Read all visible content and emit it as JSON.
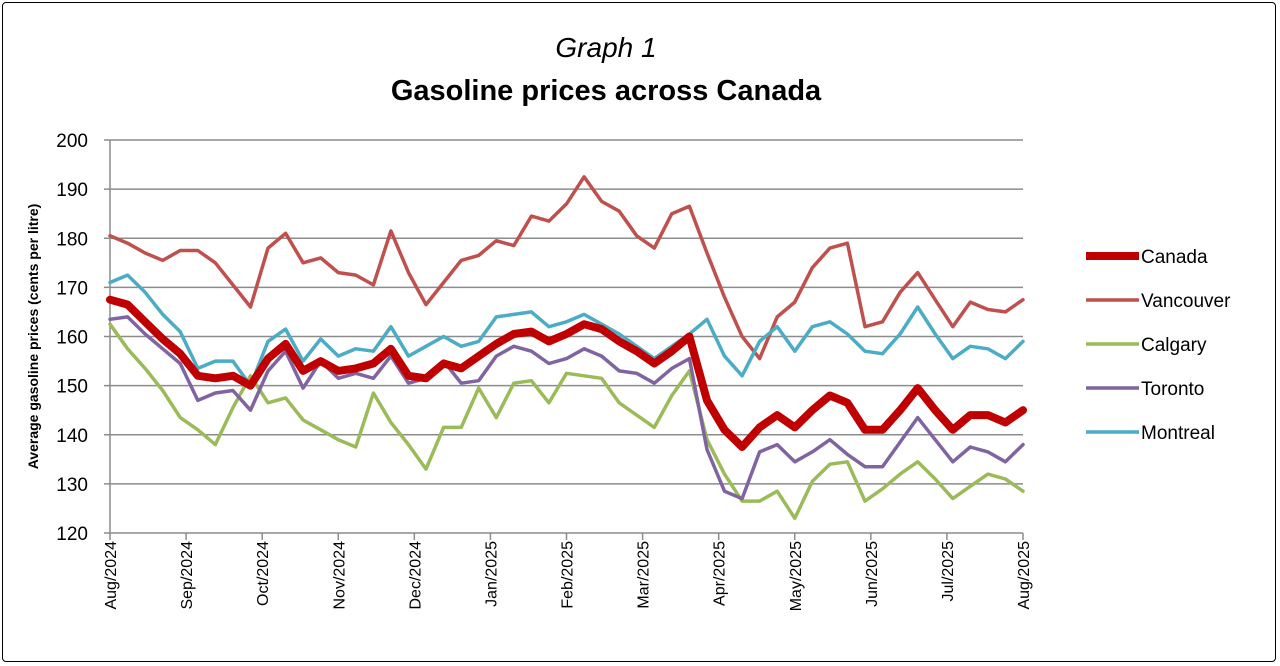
{
  "chart_data": {
    "type": "line",
    "subtitle": "Graph 1",
    "title": "Gasoline prices across Canada",
    "xlabel": "",
    "ylabel": "Average gasoline prices (cents per litre)",
    "ylim": [
      120,
      200
    ],
    "yticks": [
      120,
      130,
      140,
      150,
      160,
      170,
      180,
      190,
      200
    ],
    "x_tick_labels": [
      "Aug/2024",
      "Sep/2024",
      "Oct/2024",
      "Nov/2024",
      "Dec/2024",
      "Jan/2025",
      "Feb/2025",
      "Mar/2025",
      "Apr/2025",
      "May/2025",
      "Jun/2025",
      "Jul/2025",
      "Aug/2025"
    ],
    "grid": true,
    "legend_position": "right",
    "series": [
      {
        "name": "Canada",
        "color": "#C00000",
        "values": [
          167.5,
          166.5,
          163,
          159.5,
          156.5,
          152,
          151.5,
          152,
          150,
          155.5,
          158.5,
          153,
          155,
          153,
          153.5,
          154.5,
          157.5,
          152,
          151.5,
          154.5,
          153.5,
          156,
          158.5,
          160.5,
          161,
          159,
          160.5,
          162.5,
          161.5,
          159,
          157,
          154.5,
          157,
          160,
          147,
          141,
          137.5,
          141.5,
          144,
          141.5,
          145,
          148,
          146.5,
          141,
          141,
          145,
          149.5,
          145,
          141,
          144,
          144,
          142.5,
          145
        ]
      },
      {
        "name": "Vancouver",
        "color": "#C0504D",
        "values": [
          180.5,
          179,
          177,
          175.5,
          177.5,
          177.5,
          175,
          170.5,
          166,
          178,
          181,
          175,
          176,
          173,
          172.5,
          170.5,
          181.5,
          173,
          166.5,
          171,
          175.5,
          176.5,
          179.5,
          178.5,
          184.5,
          183.5,
          187,
          192.5,
          187.5,
          185.5,
          180.5,
          178,
          185,
          186.5,
          177,
          168,
          160,
          155.5,
          164,
          167,
          174,
          178,
          179,
          162,
          163,
          169,
          173,
          167.5,
          162,
          167,
          165.5,
          165,
          167.5
        ]
      },
      {
        "name": "Calgary",
        "color": "#9BBB59",
        "values": [
          162.5,
          157.5,
          153.5,
          149,
          143.5,
          141,
          138,
          145.5,
          152,
          146.5,
          147.5,
          143,
          141,
          139,
          137.5,
          148.5,
          142.5,
          138,
          133,
          141.5,
          141.5,
          149.5,
          143.5,
          150.5,
          151,
          146.5,
          152.5,
          152,
          151.5,
          146.5,
          144,
          141.5,
          148,
          153,
          139,
          132,
          126.5,
          126.5,
          128.5,
          123,
          130.5,
          134,
          134.5,
          126.5,
          129,
          132,
          134.5,
          131,
          127,
          129.5,
          132,
          131,
          128.5
        ]
      },
      {
        "name": "Toronto",
        "color": "#8064A2",
        "values": [
          163.5,
          164,
          160.5,
          157.5,
          154.5,
          147,
          148.5,
          149,
          145,
          153,
          157,
          149.5,
          155,
          151.5,
          152.5,
          151.5,
          156,
          150.5,
          151.5,
          155,
          150.5,
          151,
          156,
          158,
          157,
          154.5,
          155.5,
          157.5,
          156,
          153,
          152.5,
          150.5,
          153.5,
          155.5,
          137,
          128.5,
          127,
          136.5,
          138,
          134.5,
          136.5,
          139,
          136,
          133.5,
          133.5,
          138.5,
          143.5,
          139,
          134.5,
          137.5,
          136.5,
          134.5,
          138
        ]
      },
      {
        "name": "Montreal",
        "color": "#4BACC6",
        "values": [
          171,
          172.5,
          169,
          164.5,
          161,
          153.5,
          155,
          155,
          150,
          159,
          161.5,
          155,
          159.5,
          156,
          157.5,
          157,
          162,
          156,
          158,
          160,
          158,
          159,
          164,
          164.5,
          165,
          162,
          163,
          164.5,
          162.5,
          160.5,
          158,
          155.5,
          158,
          160.5,
          163.5,
          156,
          152,
          159,
          162,
          157,
          162,
          163,
          160.5,
          157,
          156.5,
          160.5,
          166,
          160.5,
          155.5,
          158,
          157.5,
          155.5,
          159
        ]
      }
    ]
  }
}
